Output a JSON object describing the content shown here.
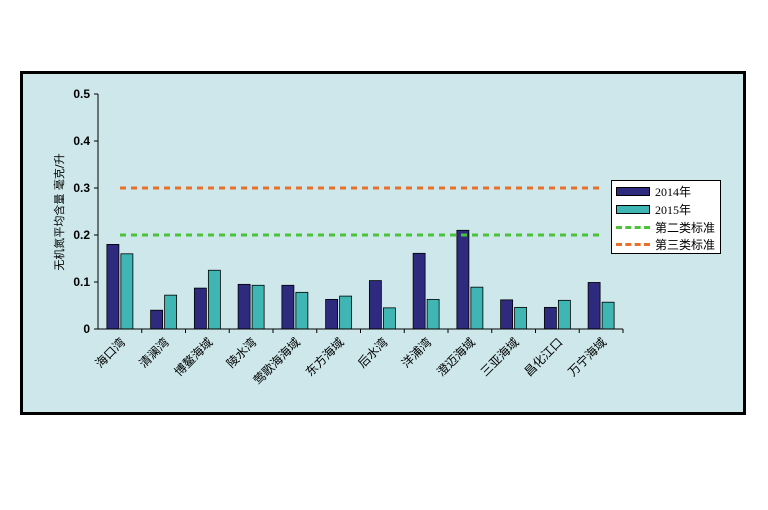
{
  "chart_data": {
    "type": "bar",
    "ylabel": "无机氮平均含量 毫克/升",
    "ylim": [
      0,
      0.5
    ],
    "yticks": [
      "0",
      "0.1",
      "0.2",
      "0.3",
      "0.4",
      "0.5"
    ],
    "categories": [
      "海口湾",
      "清澜湾",
      "博鳌海域",
      "陵水湾",
      "莺歌海海域",
      "东方海域",
      "后水湾",
      "洋浦湾",
      "澄迈海域",
      "三亚海域",
      "昌化江口",
      "万宁海域"
    ],
    "series": [
      {
        "name": "2014年",
        "color": "#2e2a7e",
        "values": [
          0.18,
          0.04,
          0.087,
          0.095,
          0.093,
          0.063,
          0.103,
          0.161,
          0.21,
          0.062,
          0.046,
          0.099
        ]
      },
      {
        "name": "2015年",
        "color": "#3fb6b4",
        "values": [
          0.16,
          0.072,
          0.125,
          0.093,
          0.078,
          0.07,
          0.045,
          0.063,
          0.089,
          0.046,
          0.061,
          0.057
        ]
      }
    ],
    "reference_lines": [
      {
        "name": "第二类标准",
        "value": 0.2,
        "color": "#4cc13a"
      },
      {
        "name": "第三类标准",
        "value": 0.3,
        "color": "#e9702a"
      }
    ],
    "legend_position": "right"
  }
}
